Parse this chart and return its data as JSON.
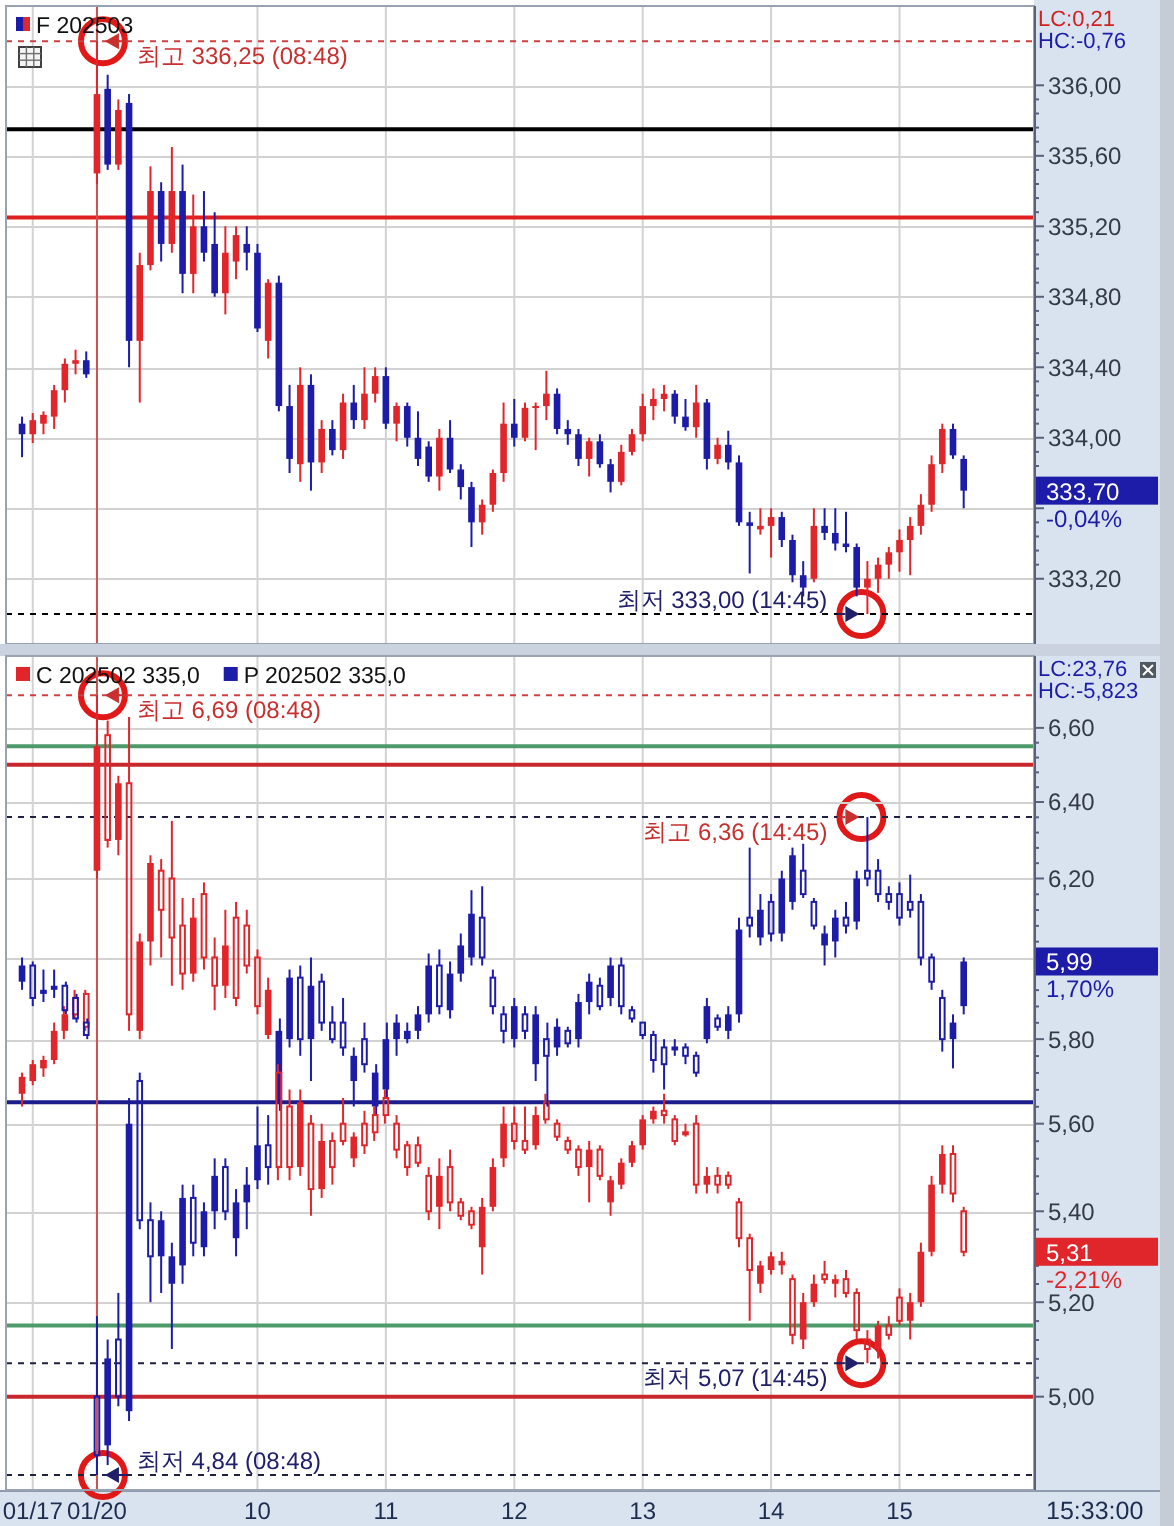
{
  "chart_data": [
    {
      "type": "candlestick",
      "categories": [
        null,
        "01/17",
        null,
        null,
        null,
        null,
        null,
        "01/20",
        null,
        null,
        null,
        null,
        null,
        null,
        null,
        null,
        null,
        null,
        null,
        null,
        null,
        null,
        "10",
        null,
        null,
        null,
        null,
        null,
        null,
        null,
        null,
        null,
        null,
        null,
        "11",
        null,
        null,
        null,
        null,
        null,
        null,
        null,
        null,
        null,
        null,
        null,
        "12",
        null,
        null,
        null,
        null,
        null,
        null,
        null,
        null,
        null,
        null,
        null,
        "13",
        null,
        null,
        null,
        null,
        null,
        null,
        null,
        null,
        null,
        null,
        null,
        "14",
        null,
        null,
        null,
        null,
        null,
        null,
        null,
        null,
        null,
        null,
        null,
        "15",
        null,
        null,
        null,
        null,
        null,
        null
      ],
      "series": [
        {
          "name": "F 202503",
          "ohlc": [
            [
              334.08,
              334.12,
              333.89,
              334.02
            ],
            [
              334.02,
              334.14,
              333.97,
              334.1
            ],
            [
              334.08,
              334.15,
              334.02,
              334.13
            ],
            [
              334.12,
              334.3,
              334.05,
              334.27
            ],
            [
              334.27,
              334.45,
              334.2,
              334.42
            ],
            [
              334.42,
              334.5,
              334.36,
              334.44
            ],
            [
              334.44,
              334.49,
              334.34,
              334.36
            ],
            [
              335.5,
              336.25,
              335.44,
              335.95
            ],
            [
              335.98,
              336.06,
              335.52,
              335.55
            ],
            [
              335.55,
              335.92,
              335.52,
              335.86
            ],
            [
              335.9,
              335.95,
              334.4,
              334.55
            ],
            [
              334.55,
              335.05,
              334.2,
              334.98
            ],
            [
              334.98,
              335.54,
              334.95,
              335.4
            ],
            [
              335.4,
              335.45,
              335.0,
              335.1
            ],
            [
              335.1,
              335.65,
              335.05,
              335.4
            ],
            [
              335.4,
              335.55,
              334.82,
              334.93
            ],
            [
              334.93,
              335.38,
              334.82,
              335.2
            ],
            [
              335.2,
              335.4,
              335.0,
              335.05
            ],
            [
              335.1,
              335.28,
              334.8,
              334.82
            ],
            [
              334.82,
              335.2,
              334.7,
              335.05
            ],
            [
              335.0,
              335.2,
              334.9,
              335.15
            ],
            [
              335.1,
              335.2,
              334.95,
              335.05
            ],
            [
              335.05,
              335.1,
              334.6,
              334.62
            ],
            [
              334.55,
              334.9,
              334.45,
              334.88
            ],
            [
              334.88,
              334.92,
              334.15,
              334.18
            ],
            [
              334.18,
              334.3,
              333.8,
              333.88
            ],
            [
              333.85,
              334.4,
              333.75,
              334.3
            ],
            [
              334.3,
              334.36,
              333.7,
              333.86
            ],
            [
              333.86,
              334.1,
              333.8,
              334.05
            ],
            [
              334.05,
              334.1,
              333.9,
              333.93
            ],
            [
              333.93,
              334.25,
              333.88,
              334.2
            ],
            [
              334.2,
              334.3,
              334.05,
              334.1
            ],
            [
              334.1,
              334.4,
              334.05,
              334.25
            ],
            [
              334.25,
              334.4,
              334.2,
              334.35
            ],
            [
              334.35,
              334.4,
              334.05,
              334.08
            ],
            [
              334.08,
              334.2,
              333.98,
              334.18
            ],
            [
              334.18,
              334.2,
              333.95,
              334.0
            ],
            [
              334.0,
              334.15,
              333.84,
              333.88
            ],
            [
              333.95,
              333.98,
              333.75,
              333.78
            ],
            [
              333.78,
              334.05,
              333.7,
              334.0
            ],
            [
              334.0,
              334.1,
              333.8,
              333.82
            ],
            [
              333.82,
              333.85,
              333.65,
              333.72
            ],
            [
              333.72,
              333.75,
              333.38,
              333.52
            ],
            [
              333.52,
              333.65,
              333.45,
              333.62
            ],
            [
              333.62,
              333.82,
              333.58,
              333.8
            ],
            [
              333.8,
              334.2,
              333.75,
              334.08
            ],
            [
              334.08,
              334.22,
              333.95,
              334.0
            ],
            [
              334.0,
              334.2,
              333.98,
              334.17
            ],
            [
              334.17,
              334.2,
              333.93,
              334.18
            ],
            [
              334.18,
              334.38,
              334.1,
              334.25
            ],
            [
              334.25,
              334.28,
              334.02,
              334.05
            ],
            [
              334.05,
              334.1,
              333.96,
              334.02
            ],
            [
              334.02,
              334.05,
              333.84,
              333.88
            ],
            [
              333.88,
              334.0,
              333.78,
              333.98
            ],
            [
              333.98,
              334.02,
              333.83,
              333.85
            ],
            [
              333.85,
              333.88,
              333.69,
              333.75
            ],
            [
              333.75,
              333.96,
              333.73,
              333.92
            ],
            [
              333.92,
              334.05,
              333.9,
              334.02
            ],
            [
              334.02,
              334.25,
              333.98,
              334.18
            ],
            [
              334.18,
              334.28,
              334.1,
              334.22
            ],
            [
              334.22,
              334.3,
              334.15,
              334.25
            ],
            [
              334.25,
              334.27,
              334.08,
              334.12
            ],
            [
              334.12,
              334.22,
              334.04,
              334.06
            ],
            [
              334.06,
              334.3,
              334.0,
              334.2
            ],
            [
              334.2,
              334.22,
              333.82,
              333.88
            ],
            [
              333.88,
              334.0,
              333.85,
              333.96
            ],
            [
              333.96,
              334.04,
              333.82,
              333.86
            ],
            [
              333.86,
              333.9,
              333.5,
              333.52
            ],
            [
              333.52,
              333.58,
              333.23,
              333.5
            ],
            [
              333.48,
              333.6,
              333.45,
              333.5
            ],
            [
              333.5,
              333.6,
              333.32,
              333.55
            ],
            [
              333.55,
              333.58,
              333.38,
              333.42
            ],
            [
              333.42,
              333.45,
              333.18,
              333.22
            ],
            [
              333.22,
              333.3,
              333.1,
              333.15
            ],
            [
              333.2,
              333.6,
              333.18,
              333.5
            ],
            [
              333.5,
              333.6,
              333.42,
              333.46
            ],
            [
              333.46,
              333.6,
              333.36,
              333.4
            ],
            [
              333.4,
              333.58,
              333.35,
              333.38
            ],
            [
              333.38,
              333.4,
              333.1,
              333.15
            ],
            [
              333.15,
              333.3,
              333.0,
              333.2
            ],
            [
              333.2,
              333.32,
              333.12,
              333.28
            ],
            [
              333.28,
              333.38,
              333.2,
              333.35
            ],
            [
              333.35,
              333.48,
              333.24,
              333.42
            ],
            [
              333.42,
              333.55,
              333.22,
              333.5
            ],
            [
              333.5,
              333.68,
              333.45,
              333.62
            ],
            [
              333.62,
              333.9,
              333.58,
              333.85
            ],
            [
              333.85,
              334.08,
              333.8,
              334.05
            ],
            [
              334.05,
              334.08,
              333.88,
              333.9
            ],
            [
              333.88,
              333.9,
              333.6,
              333.7
            ]
          ],
          "colors": [
            "#1c1ca8",
            "#e0262b",
            "#e0262b",
            "#e0262b",
            "#e0262b",
            "#e0262b",
            "#1c1ca8",
            "#e0262b",
            "#1c1ca8",
            "#e0262b",
            "#1c1ca8",
            "#e0262b",
            "#e0262b",
            "#1c1ca8",
            "#e0262b",
            "#1c1ca8",
            "#e0262b",
            "#1c1ca8",
            "#1c1ca8",
            "#e0262b",
            "#e0262b",
            "#1c1ca8",
            "#1c1ca8",
            "#e0262b",
            "#1c1ca8",
            "#1c1ca8",
            "#e0262b",
            "#1c1ca8",
            "#e0262b",
            "#1c1ca8",
            "#e0262b",
            "#1c1ca8",
            "#e0262b",
            "#e0262b",
            "#1c1ca8",
            "#e0262b",
            "#1c1ca8",
            "#1c1ca8",
            "#1c1ca8",
            "#e0262b",
            "#1c1ca8",
            "#1c1ca8",
            "#1c1ca8",
            "#e0262b",
            "#e0262b",
            "#e0262b",
            "#1c1ca8",
            "#e0262b",
            "#e0262b",
            "#e0262b",
            "#1c1ca8",
            "#1c1ca8",
            "#1c1ca8",
            "#e0262b",
            "#1c1ca8",
            "#1c1ca8",
            "#e0262b",
            "#e0262b",
            "#e0262b",
            "#e0262b",
            "#e0262b",
            "#1c1ca8",
            "#1c1ca8",
            "#e0262b",
            "#1c1ca8",
            "#e0262b",
            "#1c1ca8",
            "#1c1ca8",
            "#1c1ca8",
            "#e0262b",
            "#e0262b",
            "#1c1ca8",
            "#1c1ca8",
            "#1c1ca8",
            "#e0262b",
            "#1c1ca8",
            "#1c1ca8",
            "#1c1ca8",
            "#1c1ca8",
            "#e0262b",
            "#e0262b",
            "#e0262b",
            "#e0262b",
            "#e0262b",
            "#e0262b",
            "#e0262b",
            "#e0262b",
            "#1c1ca8",
            "#1c1ca8"
          ]
        }
      ],
      "ylim": [
        332.83,
        336.45
      ],
      "yticks": [
        {
          "value": 336,
          "label": "336,00"
        },
        {
          "value": 335.6,
          "label": "335,60"
        },
        {
          "value": 335.2,
          "label": "335,20"
        },
        {
          "value": 334.8,
          "label": "334,80"
        },
        {
          "value": 334.4,
          "label": "334,40"
        },
        {
          "value": 334,
          "label": "334,00"
        },
        {
          "value": 333.6,
          "label": null
        },
        {
          "value": 333.2,
          "label": "333,20"
        }
      ],
      "grid": true,
      "legend": "top left",
      "tick_labels": "y",
      "ref_lines": [
        {
          "axis": "y",
          "value": 336.25,
          "label": "최고 336,25 (08:48)",
          "color": "#d04040",
          "line_style": "dashed"
        },
        {
          "axis": "y",
          "value": 335.75,
          "color": "#000000"
        },
        {
          "axis": "y",
          "value": 335.25,
          "color": "#e02020"
        },
        {
          "axis": "y",
          "value": 333.0,
          "label": "최저 333,00 (14:45)",
          "color": "#000000",
          "line_style": "dashed"
        },
        {
          "axis": "x",
          "value": "01/20",
          "color": "#d05050"
        }
      ],
      "annotations": [
        "LC:0,21",
        "HC:-0,76",
        "333,70",
        "-0,04%"
      ]
    },
    {
      "type": "candlestick",
      "categories": [
        null,
        "01/17",
        null,
        null,
        null,
        null,
        null,
        "01/20",
        null,
        null,
        null,
        null,
        null,
        null,
        null,
        null,
        null,
        null,
        null,
        null,
        null,
        null,
        "10",
        null,
        null,
        null,
        null,
        null,
        null,
        null,
        null,
        null,
        null,
        null,
        "11",
        null,
        null,
        null,
        null,
        null,
        null,
        null,
        null,
        null,
        null,
        null,
        "12",
        null,
        null,
        null,
        null,
        null,
        null,
        null,
        null,
        null,
        null,
        null,
        "13",
        null,
        null,
        null,
        null,
        null,
        null,
        null,
        null,
        null,
        null,
        null,
        "14",
        null,
        null,
        null,
        null,
        null,
        null,
        null,
        null,
        null,
        null,
        null,
        "15",
        null,
        null,
        null,
        null,
        null,
        null
      ],
      "series": [
        {
          "name": "C 202502 335,0",
          "color": "#e0262b",
          "ohlc": [
            [
              5.67,
              5.72,
              5.64,
              5.71
            ],
            [
              5.7,
              5.75,
              5.69,
              5.74
            ],
            [
              5.73,
              5.76,
              5.71,
              5.75
            ],
            [
              5.75,
              5.84,
              5.74,
              5.82
            ],
            [
              5.82,
              5.88,
              5.8,
              5.86
            ],
            [
              5.9,
              5.92,
              5.85,
              5.86
            ],
            [
              5.91,
              5.92,
              5.82,
              5.83
            ],
            [
              6.22,
              6.69,
              6.2,
              6.55
            ],
            [
              6.58,
              6.62,
              6.28,
              6.3
            ],
            [
              6.3,
              6.47,
              6.26,
              6.45
            ],
            [
              6.45,
              6.63,
              5.82,
              5.86
            ],
            [
              5.82,
              6.06,
              5.8,
              6.04
            ],
            [
              6.04,
              6.26,
              5.98,
              6.24
            ],
            [
              6.22,
              6.25,
              6.0,
              6.12
            ],
            [
              6.2,
              6.35,
              5.93,
              6.05
            ],
            [
              6.08,
              6.15,
              5.92,
              5.96
            ],
            [
              5.96,
              6.15,
              5.94,
              6.1
            ],
            [
              6.16,
              6.19,
              5.97,
              6.0
            ],
            [
              6.0,
              6.05,
              5.87,
              5.93
            ],
            [
              5.93,
              6.12,
              5.9,
              6.03
            ],
            [
              6.1,
              6.14,
              5.88,
              5.9
            ],
            [
              6.08,
              6.12,
              5.96,
              5.98
            ],
            [
              6.0,
              6.02,
              5.86,
              5.88
            ],
            [
              5.81,
              5.95,
              5.8,
              5.92
            ],
            [
              5.72,
              5.74,
              5.47,
              5.5
            ],
            [
              5.64,
              5.68,
              5.47,
              5.5
            ],
            [
              5.5,
              5.68,
              5.48,
              5.65
            ],
            [
              5.6,
              5.62,
              5.39,
              5.45
            ],
            [
              5.45,
              5.6,
              5.43,
              5.56
            ],
            [
              5.56,
              5.58,
              5.46,
              5.5
            ],
            [
              5.6,
              5.66,
              5.55,
              5.56
            ],
            [
              5.52,
              5.58,
              5.5,
              5.57
            ],
            [
              5.6,
              5.63,
              5.53,
              5.55
            ],
            [
              5.62,
              5.64,
              5.56,
              5.58
            ],
            [
              5.66,
              5.68,
              5.6,
              5.62
            ],
            [
              5.6,
              5.62,
              5.52,
              5.54
            ],
            [
              5.55,
              5.56,
              5.48,
              5.5
            ],
            [
              5.55,
              5.57,
              5.5,
              5.51
            ],
            [
              5.48,
              5.5,
              5.38,
              5.4
            ],
            [
              5.41,
              5.52,
              5.36,
              5.48
            ],
            [
              5.5,
              5.54,
              5.4,
              5.42
            ],
            [
              5.42,
              5.43,
              5.38,
              5.39
            ],
            [
              5.4,
              5.41,
              5.36,
              5.37
            ],
            [
              5.32,
              5.43,
              5.26,
              5.41
            ],
            [
              5.41,
              5.52,
              5.4,
              5.5
            ],
            [
              5.52,
              5.64,
              5.5,
              5.6
            ],
            [
              5.6,
              5.64,
              5.54,
              5.56
            ],
            [
              5.56,
              5.64,
              5.53,
              5.54
            ],
            [
              5.55,
              5.64,
              5.54,
              5.62
            ],
            [
              5.65,
              5.67,
              5.6,
              5.61
            ],
            [
              5.6,
              5.61,
              5.56,
              5.57
            ],
            [
              5.56,
              5.57,
              5.53,
              5.54
            ],
            [
              5.54,
              5.55,
              5.48,
              5.5
            ],
            [
              5.5,
              5.56,
              5.42,
              5.54
            ],
            [
              5.54,
              5.55,
              5.47,
              5.48
            ],
            [
              5.42,
              5.48,
              5.39,
              5.47
            ],
            [
              5.46,
              5.52,
              5.45,
              5.51
            ],
            [
              5.51,
              5.56,
              5.5,
              5.55
            ],
            [
              5.55,
              5.62,
              5.54,
              5.61
            ],
            [
              5.61,
              5.64,
              5.6,
              5.63
            ],
            [
              5.63,
              5.67,
              5.6,
              5.62
            ],
            [
              5.61,
              5.62,
              5.55,
              5.56
            ],
            [
              5.58,
              5.6,
              5.57,
              5.58
            ],
            [
              5.6,
              5.62,
              5.44,
              5.46
            ],
            [
              5.46,
              5.5,
              5.44,
              5.48
            ],
            [
              5.48,
              5.5,
              5.44,
              5.46
            ],
            [
              5.48,
              5.49,
              5.45,
              5.46
            ],
            [
              5.42,
              5.43,
              5.32,
              5.34
            ],
            [
              5.34,
              5.35,
              5.16,
              5.27
            ],
            [
              5.24,
              5.29,
              5.22,
              5.28
            ],
            [
              5.27,
              5.31,
              5.26,
              5.3
            ],
            [
              5.28,
              5.31,
              5.26,
              5.29
            ],
            [
              5.25,
              5.26,
              5.11,
              5.13
            ],
            [
              5.12,
              5.22,
              5.1,
              5.2
            ],
            [
              5.2,
              5.26,
              5.19,
              5.24
            ],
            [
              5.26,
              5.29,
              5.24,
              5.25
            ],
            [
              5.24,
              5.26,
              5.21,
              5.25
            ],
            [
              5.25,
              5.27,
              5.21,
              5.22
            ],
            [
              5.22,
              5.23,
              5.12,
              5.14
            ],
            [
              5.12,
              5.14,
              5.07,
              5.1
            ],
            [
              5.1,
              5.16,
              5.08,
              5.15
            ],
            [
              5.15,
              5.17,
              5.12,
              5.13
            ],
            [
              5.21,
              5.23,
              5.15,
              5.16
            ],
            [
              5.16,
              5.22,
              5.12,
              5.2
            ],
            [
              5.2,
              5.33,
              5.19,
              5.31
            ],
            [
              5.31,
              5.48,
              5.3,
              5.46
            ],
            [
              5.46,
              5.55,
              5.44,
              5.53
            ],
            [
              5.53,
              5.55,
              5.42,
              5.44
            ],
            [
              5.4,
              5.41,
              5.3,
              5.31
            ]
          ]
        },
        {
          "name": "P 202502 335,0",
          "color": "#1c1ca8",
          "ohlc": [
            [
              5.94,
              6.0,
              5.92,
              5.98
            ],
            [
              5.98,
              5.99,
              5.88,
              5.9
            ],
            [
              5.91,
              5.97,
              5.89,
              5.92
            ],
            [
              5.92,
              5.97,
              5.9,
              5.93
            ],
            [
              5.93,
              5.94,
              5.86,
              5.87
            ],
            [
              5.9,
              5.91,
              5.84,
              5.85
            ],
            [
              5.84,
              5.85,
              5.8,
              5.81
            ],
            [
              5.0,
              5.17,
              4.84,
              4.88
            ],
            [
              4.9,
              5.12,
              4.86,
              5.08
            ],
            [
              5.12,
              5.22,
              4.98,
              5.0
            ],
            [
              4.97,
              5.66,
              4.95,
              5.6
            ],
            [
              5.7,
              5.72,
              5.36,
              5.38
            ],
            [
              5.38,
              5.42,
              5.2,
              5.3
            ],
            [
              5.3,
              5.4,
              5.22,
              5.38
            ],
            [
              5.24,
              5.33,
              5.1,
              5.3
            ],
            [
              5.28,
              5.46,
              5.24,
              5.43
            ],
            [
              5.43,
              5.46,
              5.3,
              5.33
            ],
            [
              5.32,
              5.42,
              5.3,
              5.4
            ],
            [
              5.4,
              5.52,
              5.36,
              5.48
            ],
            [
              5.5,
              5.52,
              5.38,
              5.4
            ],
            [
              5.34,
              5.45,
              5.3,
              5.42
            ],
            [
              5.42,
              5.5,
              5.36,
              5.46
            ],
            [
              5.47,
              5.64,
              5.45,
              5.55
            ],
            [
              5.55,
              5.62,
              5.46,
              5.5
            ],
            [
              5.65,
              5.85,
              5.63,
              5.82
            ],
            [
              5.8,
              5.97,
              5.78,
              5.95
            ],
            [
              5.95,
              5.98,
              5.76,
              5.8
            ],
            [
              5.8,
              6.0,
              5.7,
              5.93
            ],
            [
              5.94,
              5.96,
              5.82,
              5.84
            ],
            [
              5.84,
              5.88,
              5.79,
              5.8
            ],
            [
              5.84,
              5.9,
              5.76,
              5.78
            ],
            [
              5.7,
              5.78,
              5.64,
              5.76
            ],
            [
              5.8,
              5.84,
              5.72,
              5.74
            ],
            [
              5.64,
              5.74,
              5.62,
              5.72
            ],
            [
              5.68,
              5.84,
              5.66,
              5.8
            ],
            [
              5.8,
              5.86,
              5.76,
              5.84
            ],
            [
              5.8,
              5.84,
              5.79,
              5.82
            ],
            [
              5.82,
              5.88,
              5.8,
              5.86
            ],
            [
              5.86,
              6.01,
              5.84,
              5.98
            ],
            [
              5.98,
              6.02,
              5.86,
              5.88
            ],
            [
              5.87,
              5.99,
              5.85,
              5.96
            ],
            [
              5.96,
              6.06,
              5.94,
              6.03
            ],
            [
              6.0,
              6.17,
              5.98,
              6.11
            ],
            [
              6.1,
              6.18,
              5.98,
              6.0
            ],
            [
              5.95,
              5.97,
              5.86,
              5.88
            ],
            [
              5.86,
              5.88,
              5.79,
              5.82
            ],
            [
              5.8,
              5.9,
              5.78,
              5.88
            ],
            [
              5.86,
              5.88,
              5.8,
              5.82
            ],
            [
              5.74,
              5.88,
              5.7,
              5.86
            ],
            [
              5.8,
              5.84,
              5.64,
              5.76
            ],
            [
              5.78,
              5.85,
              5.76,
              5.83
            ],
            [
              5.82,
              5.83,
              5.78,
              5.79
            ],
            [
              5.8,
              5.91,
              5.78,
              5.89
            ],
            [
              5.89,
              5.96,
              5.86,
              5.94
            ],
            [
              5.93,
              5.95,
              5.87,
              5.88
            ],
            [
              5.9,
              6.0,
              5.88,
              5.98
            ],
            [
              5.98,
              6.0,
              5.86,
              5.88
            ],
            [
              5.87,
              5.88,
              5.84,
              5.85
            ],
            [
              5.84,
              5.84,
              5.8,
              5.81
            ],
            [
              5.81,
              5.82,
              5.72,
              5.75
            ],
            [
              5.78,
              5.8,
              5.68,
              5.74
            ],
            [
              5.78,
              5.8,
              5.76,
              5.78
            ],
            [
              5.78,
              5.79,
              5.74,
              5.76
            ],
            [
              5.76,
              5.77,
              5.71,
              5.72
            ],
            [
              5.8,
              5.9,
              5.79,
              5.88
            ],
            [
              5.85,
              5.86,
              5.82,
              5.83
            ],
            [
              5.82,
              5.88,
              5.8,
              5.86
            ],
            [
              5.86,
              6.1,
              5.84,
              6.07
            ],
            [
              6.1,
              6.28,
              6.05,
              6.08
            ],
            [
              6.05,
              6.16,
              6.03,
              6.12
            ],
            [
              6.14,
              6.16,
              6.04,
              6.06
            ],
            [
              6.06,
              6.22,
              6.04,
              6.2
            ],
            [
              6.14,
              6.28,
              6.12,
              6.26
            ],
            [
              6.22,
              6.29,
              6.15,
              6.16
            ],
            [
              6.14,
              6.15,
              6.07,
              6.08
            ],
            [
              6.03,
              6.08,
              5.98,
              6.06
            ],
            [
              6.04,
              6.12,
              6.0,
              6.1
            ],
            [
              6.1,
              6.14,
              6.06,
              6.08
            ],
            [
              6.09,
              6.22,
              6.07,
              6.2
            ],
            [
              6.22,
              6.36,
              6.18,
              6.2
            ],
            [
              6.22,
              6.25,
              6.14,
              6.16
            ],
            [
              6.16,
              6.18,
              6.12,
              6.14
            ],
            [
              6.16,
              6.19,
              6.08,
              6.1
            ],
            [
              6.14,
              6.21,
              6.1,
              6.12
            ],
            [
              6.14,
              6.16,
              5.98,
              6.0
            ],
            [
              6.0,
              6.01,
              5.92,
              5.94
            ],
            [
              5.9,
              5.92,
              5.77,
              5.8
            ],
            [
              5.8,
              5.86,
              5.73,
              5.84
            ],
            [
              5.88,
              6.0,
              5.86,
              5.99
            ]
          ]
        }
      ],
      "log": true,
      "ylim": [
        4.81,
        6.8
      ],
      "yticks": [
        {
          "value": 6.6,
          "label": "6,60"
        },
        {
          "value": 6.4,
          "label": "6,40"
        },
        {
          "value": 6.2,
          "label": "6,20"
        },
        {
          "value": 6.0,
          "label": null
        },
        {
          "value": 5.8,
          "label": "5,80"
        },
        {
          "value": 5.6,
          "label": "5,60"
        },
        {
          "value": 5.4,
          "label": "5,40"
        },
        {
          "value": 5.2,
          "label": "5,20"
        },
        {
          "value": 5.0,
          "label": "5,00"
        }
      ],
      "grid": true,
      "legend": "top left",
      "ref_lines": [
        {
          "axis": "y",
          "value": 6.69,
          "label": "최고 6,69 (08:48)",
          "color": "#d04040",
          "line_style": "dashed"
        },
        {
          "axis": "y",
          "value": 6.55,
          "color": "#4e9a6a"
        },
        {
          "axis": "y",
          "value": 6.5,
          "color": "#c8282d"
        },
        {
          "axis": "y",
          "value": 6.36,
          "label": "최고 6,36 (14:45)",
          "color": "#202040",
          "line_style": "dashed"
        },
        {
          "axis": "y",
          "value": 5.65,
          "color": "#1c1c8c"
        },
        {
          "axis": "y",
          "value": 5.15,
          "color": "#4e9a6a"
        },
        {
          "axis": "y",
          "value": 5.07,
          "label": "최저 5,07 (14:45)",
          "color": "#202040",
          "line_style": "dashed"
        },
        {
          "axis": "y",
          "value": 5.0,
          "color": "#c8282d"
        },
        {
          "axis": "y",
          "value": 4.84,
          "label": "최저 4,84 (08:48)",
          "color": "#202040",
          "line_style": "dashed"
        },
        {
          "axis": "x",
          "value": "01/20",
          "color": "#d05050"
        }
      ],
      "annotations": [
        "LC:23,76",
        "HC:-5,823",
        "5,31",
        "-2,21%",
        "5,99",
        "1,70%",
        "15:33:00"
      ]
    }
  ]
}
